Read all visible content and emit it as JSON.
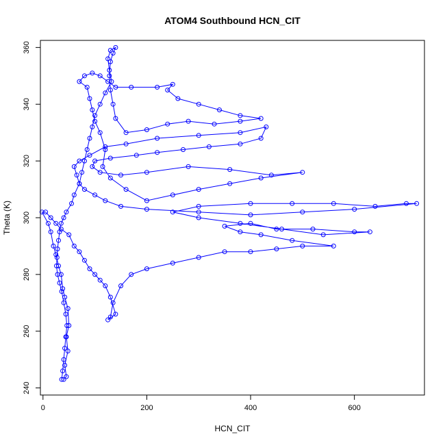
{
  "chart_data": {
    "type": "scatter",
    "title": "ATOM4 Southbound HCN_CIT",
    "xlabel": "HCN_CIT",
    "ylabel": "Theta (K)",
    "xlim": [
      -5,
      735
    ],
    "ylim": [
      237.5,
      362.5
    ],
    "xticks": [
      0,
      200,
      400,
      600
    ],
    "yticks": [
      240,
      260,
      280,
      300,
      320,
      340,
      360
    ],
    "grid": false,
    "marker": "open-circle",
    "connect_points": true,
    "color": "#0000ff",
    "series": [
      {
        "values": [
          [
            40,
            243
          ],
          [
            45,
            244
          ],
          [
            42,
            248
          ],
          [
            48,
            253
          ],
          [
            45,
            258
          ],
          [
            50,
            262
          ],
          [
            48,
            268
          ],
          [
            42,
            272
          ],
          [
            38,
            275
          ],
          [
            35,
            280
          ],
          [
            30,
            283
          ],
          [
            25,
            287
          ],
          [
            20,
            290
          ],
          [
            15,
            295
          ],
          [
            10,
            298
          ],
          [
            -2,
            302
          ],
          [
            5,
            302
          ],
          [
            15,
            300
          ],
          [
            25,
            298
          ],
          [
            35,
            296
          ],
          [
            50,
            294
          ],
          [
            60,
            290
          ],
          [
            70,
            288
          ],
          [
            80,
            285
          ],
          [
            90,
            282
          ],
          [
            100,
            280
          ],
          [
            110,
            278
          ],
          [
            120,
            276
          ],
          [
            130,
            272
          ],
          [
            140,
            266
          ],
          [
            125,
            264
          ],
          [
            130,
            265
          ],
          [
            135,
            270
          ],
          [
            150,
            276
          ],
          [
            170,
            280
          ],
          [
            200,
            282
          ],
          [
            250,
            284
          ],
          [
            300,
            286
          ],
          [
            350,
            288
          ],
          [
            400,
            288
          ],
          [
            450,
            289
          ],
          [
            500,
            290
          ],
          [
            560,
            290
          ],
          [
            480,
            292
          ],
          [
            420,
            294
          ],
          [
            380,
            295
          ],
          [
            350,
            297
          ],
          [
            400,
            298
          ],
          [
            450,
            296
          ],
          [
            520,
            296
          ],
          [
            600,
            295
          ],
          [
            630,
            295
          ],
          [
            540,
            294
          ],
          [
            460,
            296
          ],
          [
            380,
            298
          ],
          [
            300,
            300
          ],
          [
            250,
            302
          ],
          [
            300,
            304
          ],
          [
            400,
            305
          ],
          [
            480,
            305
          ],
          [
            560,
            305
          ],
          [
            640,
            304
          ],
          [
            700,
            305
          ],
          [
            720,
            305
          ],
          [
            600,
            303
          ],
          [
            500,
            302
          ],
          [
            400,
            301
          ],
          [
            300,
            302
          ],
          [
            200,
            303
          ],
          [
            150,
            304
          ],
          [
            120,
            306
          ],
          [
            100,
            308
          ],
          [
            80,
            310
          ],
          [
            70,
            312
          ],
          [
            65,
            315
          ],
          [
            60,
            318
          ],
          [
            70,
            320
          ],
          [
            90,
            322
          ],
          [
            120,
            325
          ],
          [
            160,
            326
          ],
          [
            220,
            328
          ],
          [
            300,
            329
          ],
          [
            380,
            330
          ],
          [
            430,
            332
          ],
          [
            420,
            328
          ],
          [
            380,
            326
          ],
          [
            320,
            325
          ],
          [
            270,
            324
          ],
          [
            220,
            323
          ],
          [
            180,
            322
          ],
          [
            130,
            321
          ],
          [
            100,
            320
          ],
          [
            95,
            318
          ],
          [
            110,
            316
          ],
          [
            150,
            315
          ],
          [
            200,
            316
          ],
          [
            280,
            318
          ],
          [
            360,
            317
          ],
          [
            440,
            315
          ],
          [
            500,
            316
          ],
          [
            420,
            314
          ],
          [
            360,
            312
          ],
          [
            300,
            310
          ],
          [
            250,
            308
          ],
          [
            200,
            306
          ],
          [
            160,
            310
          ],
          [
            130,
            314
          ],
          [
            115,
            318
          ],
          [
            120,
            324
          ],
          [
            110,
            330
          ],
          [
            100,
            334
          ],
          [
            95,
            338
          ],
          [
            90,
            342
          ],
          [
            85,
            346
          ],
          [
            70,
            348
          ],
          [
            80,
            350
          ],
          [
            95,
            351
          ],
          [
            110,
            350
          ],
          [
            125,
            348
          ],
          [
            140,
            346
          ],
          [
            170,
            346
          ],
          [
            220,
            346
          ],
          [
            250,
            347
          ],
          [
            240,
            345
          ],
          [
            260,
            342
          ],
          [
            300,
            340
          ],
          [
            340,
            338
          ],
          [
            380,
            336
          ],
          [
            420,
            335
          ],
          [
            380,
            334
          ],
          [
            330,
            333
          ],
          [
            280,
            334
          ],
          [
            240,
            333
          ],
          [
            200,
            331
          ],
          [
            160,
            330
          ],
          [
            140,
            335
          ],
          [
            135,
            340
          ],
          [
            130,
            345
          ],
          [
            128,
            350
          ],
          [
            130,
            355
          ],
          [
            135,
            358
          ],
          [
            140,
            360
          ],
          [
            130,
            359
          ],
          [
            125,
            356
          ],
          [
            128,
            352
          ],
          [
            132,
            348
          ],
          [
            120,
            344
          ],
          [
            110,
            340
          ],
          [
            100,
            336
          ],
          [
            95,
            332
          ],
          [
            90,
            328
          ],
          [
            85,
            324
          ],
          [
            80,
            320
          ],
          [
            75,
            316
          ],
          [
            70,
            312
          ],
          [
            60,
            308
          ],
          [
            55,
            305
          ],
          [
            45,
            302
          ],
          [
            40,
            300
          ],
          [
            35,
            298
          ],
          [
            32,
            295
          ],
          [
            30,
            292
          ],
          [
            28,
            289
          ],
          [
            27,
            286
          ],
          [
            26,
            283
          ],
          [
            28,
            280
          ],
          [
            32,
            277
          ],
          [
            36,
            274
          ],
          [
            40,
            270
          ],
          [
            44,
            266
          ],
          [
            46,
            262
          ],
          [
            44,
            258
          ],
          [
            42,
            254
          ],
          [
            40,
            250
          ],
          [
            38,
            246
          ],
          [
            36,
            243
          ]
        ]
      }
    ]
  }
}
